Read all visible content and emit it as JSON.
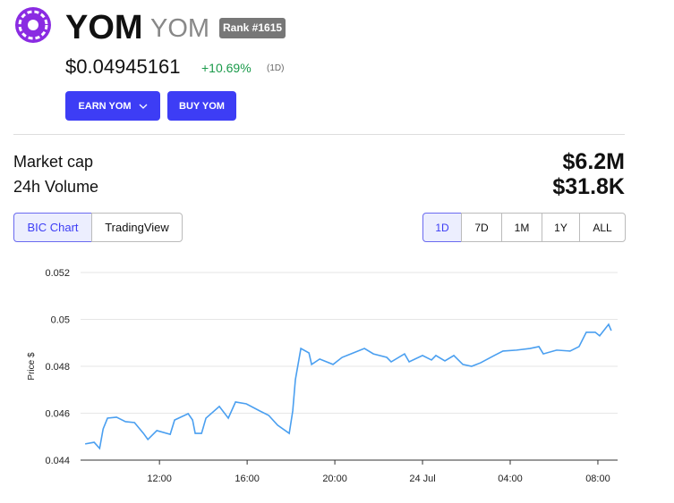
{
  "header": {
    "name": "YOM",
    "symbol": "YOM",
    "rank": "Rank #1615",
    "price": "$0.04945161",
    "change": "+10.69%",
    "period": "(1D)"
  },
  "buttons": [
    "EARN YOM",
    "BUY YOM"
  ],
  "stats": [
    {
      "label": "Market cap",
      "value": "$6.2M"
    },
    {
      "label": "24h Volume",
      "value": "$31.8K"
    }
  ],
  "chart_tabs": [
    "BIC Chart",
    "TradingView"
  ],
  "ranges": [
    "1D",
    "7D",
    "1M",
    "1Y",
    "ALL"
  ],
  "chart_data": {
    "type": "line",
    "y_label": "Price $",
    "x": [
      8.61,
      9.02,
      9.27,
      9.43,
      9.63,
      10.04,
      10.45,
      10.86,
      11.27,
      11.47,
      11.88,
      12.49,
      12.69,
      13.31,
      13.51,
      13.63,
      13.92,
      14.12,
      14.73,
      15.14,
      15.47,
      15.96,
      16.57,
      16.98,
      17.39,
      17.92,
      18.08,
      18.2,
      18.45,
      18.82,
      18.94,
      19.31,
      19.92,
      20.33,
      20.73,
      21.35,
      21.76,
      22.37,
      22.57,
      23.18,
      23.39,
      24.0,
      24.41,
      24.61,
      25.02,
      25.43,
      25.84,
      26.24,
      26.65,
      27.27,
      27.67,
      28.29,
      28.9,
      29.31,
      29.51,
      30.12,
      30.73,
      31.14,
      31.47,
      31.88,
      32.08,
      32.49,
      32.61
    ],
    "series": [
      {
        "color": "#4a9ff0",
        "values": [
          0.04469,
          0.04476,
          0.0445,
          0.04533,
          0.04579,
          0.04583,
          0.04564,
          0.0456,
          0.04514,
          0.04488,
          0.04526,
          0.0451,
          0.04571,
          0.04598,
          0.04571,
          0.04514,
          0.04514,
          0.04579,
          0.04629,
          0.04579,
          0.04648,
          0.0464,
          0.0461,
          0.04591,
          0.04549,
          0.04514,
          0.0461,
          0.04743,
          0.04876,
          0.04857,
          0.04808,
          0.04831,
          0.04808,
          0.04838,
          0.04853,
          0.04876,
          0.04853,
          0.04838,
          0.04819,
          0.04853,
          0.04819,
          0.04846,
          0.04827,
          0.04846,
          0.04823,
          0.04846,
          0.04808,
          0.048,
          0.04815,
          0.04846,
          0.04865,
          0.04869,
          0.04876,
          0.04884,
          0.04853,
          0.04869,
          0.04865,
          0.04884,
          0.04945,
          0.04945,
          0.0493,
          0.04979,
          0.04952
        ]
      }
    ],
    "xlim": [
      8.4,
      32.9
    ],
    "ylim": [
      0.044,
      0.052
    ],
    "xticks": [
      {
        "value": 12,
        "label": "12:00"
      },
      {
        "value": 16,
        "label": "16:00"
      },
      {
        "value": 20,
        "label": "20:00"
      },
      {
        "value": 24,
        "label": "24 Jul"
      },
      {
        "value": 28,
        "label": "04:00"
      },
      {
        "value": 32,
        "label": "08:00"
      }
    ],
    "yticks": [
      0.044,
      0.046,
      0.048,
      0.05,
      0.052
    ],
    "grid": true
  }
}
